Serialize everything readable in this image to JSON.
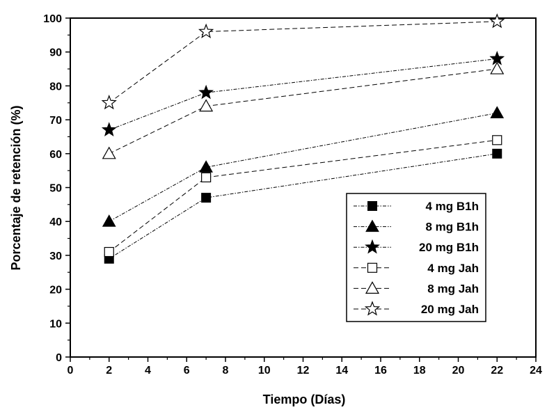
{
  "chart_data": {
    "type": "line",
    "title": "",
    "xlabel": "Tiempo (Días)",
    "ylabel": "Porcentaje de retención (%)",
    "xlim": [
      0,
      24
    ],
    "ylim": [
      0,
      100
    ],
    "x_ticks": [
      0,
      2,
      4,
      6,
      8,
      10,
      12,
      14,
      16,
      18,
      20,
      22,
      24
    ],
    "y_ticks": [
      0,
      10,
      20,
      30,
      40,
      50,
      60,
      70,
      80,
      90,
      100
    ],
    "grid": false,
    "legend_position": "bottom-right",
    "x": [
      2,
      7,
      22
    ],
    "series": [
      {
        "name": "4 mg B1h",
        "marker": "square",
        "filled": true,
        "line_style": "dash-dot",
        "values": [
          29,
          47,
          60
        ]
      },
      {
        "name": "8 mg B1h",
        "marker": "triangle",
        "filled": true,
        "line_style": "dash-dot",
        "values": [
          40,
          56,
          72
        ]
      },
      {
        "name": "20 mg B1h",
        "marker": "star",
        "filled": true,
        "line_style": "dash-dot",
        "values": [
          67,
          78,
          88
        ]
      },
      {
        "name": "4 mg Jah",
        "marker": "square",
        "filled": false,
        "line_style": "dashed",
        "values": [
          31,
          53,
          64
        ]
      },
      {
        "name": "8 mg Jah",
        "marker": "triangle",
        "filled": false,
        "line_style": "dashed",
        "values": [
          60,
          74,
          85
        ]
      },
      {
        "name": "20 mg Jah",
        "marker": "star",
        "filled": false,
        "line_style": "dashed",
        "values": [
          75,
          96,
          99
        ]
      }
    ]
  }
}
